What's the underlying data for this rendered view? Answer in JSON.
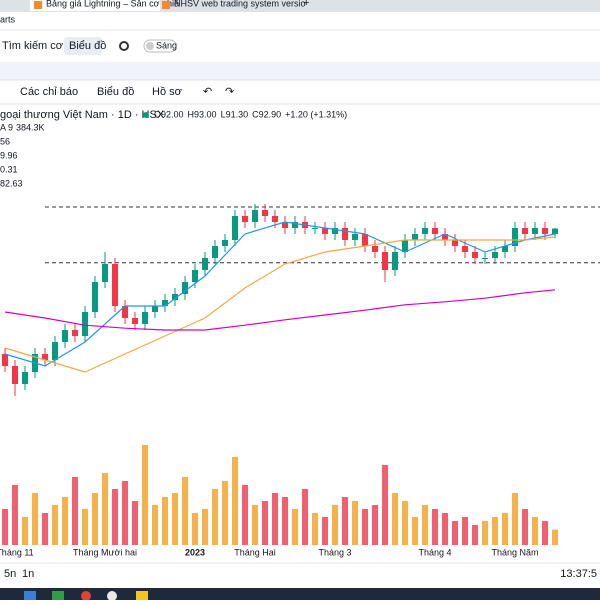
{
  "browser": {
    "tabs": [
      "Bảng giá Lightning – Sản cơ phiế",
      "NHSV web trading system versio"
    ],
    "app": "arts"
  },
  "toolbar": {
    "search": "Tìm kiếm cơ hội",
    "chart": "Biểu đồ",
    "theme": "Sáng"
  },
  "toolbar2": {
    "indicators": "Các chỉ báo",
    "chart": "Biểu đồ",
    "profile": "Hồ sơ"
  },
  "legend": {
    "symbol": "goại thương Việt Nam · 1D · HSX",
    "ohlc": [
      "O92.00",
      "H93.00",
      "L91.30",
      "C92.90",
      "+1.20 (+1.31%)"
    ],
    "rows": [
      [
        "A 9",
        "384.3K"
      ],
      [
        "56"
      ],
      [
        "9.96"
      ],
      [
        "0.31"
      ],
      [
        "82.63"
      ]
    ]
  },
  "bottom": {
    "ranges": [
      "5n",
      "1n"
    ],
    "time": "13:37:5"
  },
  "chart_data": {
    "type": "candlestick",
    "categories": [
      null,
      "Tháng 11",
      null,
      null,
      null,
      null,
      null,
      null,
      null,
      null,
      "Tháng Mười hai",
      null,
      null,
      null,
      null,
      null,
      null,
      null,
      null,
      "2023",
      null,
      null,
      null,
      null,
      null,
      "Tháng Hai",
      null,
      null,
      null,
      null,
      null,
      null,
      null,
      "Tháng 3",
      null,
      null,
      null,
      null,
      null,
      null,
      null,
      null,
      null,
      "Tháng 4",
      null,
      null,
      null,
      null,
      null,
      null,
      null,
      "Tháng Năm",
      null,
      null,
      null,
      null
    ],
    "open": [
      72,
      70,
      67,
      69,
      72,
      71,
      74,
      76,
      75,
      79,
      84,
      87,
      80,
      78,
      77,
      79,
      80,
      81,
      82,
      84,
      86,
      88,
      90,
      91,
      95,
      94,
      96,
      95,
      94,
      93,
      94,
      93,
      93,
      92,
      93,
      91,
      92,
      90,
      89,
      86,
      89,
      91,
      92,
      93,
      92,
      91,
      90,
      89,
      88,
      88,
      89,
      90,
      93,
      92,
      93,
      92
    ],
    "high": [
      73,
      71,
      70,
      73,
      73,
      75,
      77,
      77,
      80,
      85,
      89,
      88,
      81,
      79,
      80,
      81,
      82,
      83,
      85,
      87,
      89,
      91,
      92,
      96,
      96,
      97,
      97,
      96,
      95,
      95,
      95,
      94,
      94,
      94,
      94,
      93,
      93,
      91,
      90,
      90,
      92,
      93,
      94,
      94,
      93,
      92,
      91,
      90,
      89,
      90,
      91,
      94,
      94,
      94,
      94,
      93
    ],
    "low": [
      69,
      65,
      66,
      68,
      70,
      70,
      73,
      74,
      74,
      78,
      83,
      79,
      77,
      76,
      76,
      78,
      79,
      80,
      81,
      83,
      85,
      87,
      89,
      90,
      93,
      93,
      94,
      93,
      92,
      92,
      92,
      92,
      91,
      91,
      90,
      90,
      89,
      88,
      84,
      85,
      88,
      90,
      91,
      91,
      90,
      89,
      88,
      87,
      87,
      87,
      88,
      89,
      91,
      91,
      91,
      91.3
    ],
    "close": [
      70,
      67,
      69,
      72,
      71,
      74,
      76,
      75,
      79,
      84,
      87,
      80,
      78,
      77,
      79,
      80,
      81,
      82,
      84,
      86,
      88,
      90,
      91,
      95,
      94,
      96,
      95,
      94,
      93,
      94,
      93,
      93,
      92,
      93,
      91,
      92,
      90,
      89,
      86,
      89,
      91,
      92,
      93,
      92,
      91,
      90,
      89,
      88,
      88,
      89,
      90,
      93,
      92,
      93,
      92,
      92.9
    ],
    "volume": [
      900,
      1500,
      700,
      1300,
      800,
      1000,
      1200,
      1700,
      900,
      1300,
      1800,
      1400,
      1600,
      1100,
      2500,
      1000,
      1200,
      1300,
      1700,
      800,
      900,
      1400,
      1600,
      2200,
      1500,
      1000,
      1100,
      1300,
      1200,
      900,
      1400,
      800,
      700,
      1000,
      1200,
      1100,
      900,
      1000,
      2000,
      1300,
      1100,
      700,
      1000,
      900,
      800,
      600,
      700,
      500,
      600,
      700,
      800,
      1300,
      900,
      700,
      600,
      384.3
    ],
    "ylim": [
      61,
      113.5
    ],
    "volume_lim": [
      0,
      3000
    ],
    "up_color": "#089981",
    "down_color": "#f23645",
    "vol_up_color": "#f5b14c",
    "vol_down_color": "#ef6070",
    "hlines": [
      96.5,
      87.2
    ],
    "ma_x": [
      0,
      4,
      8,
      12,
      16,
      20,
      24,
      28,
      32,
      36,
      40,
      44,
      48,
      52,
      55
    ],
    "ma": [
      {
        "color": "#2196f3",
        "values": [
          72,
          70,
          74,
          80,
          80,
          85,
          92,
          94,
          93,
          92,
          89,
          92,
          89,
          91,
          92
        ]
      },
      {
        "color": "#f5a742",
        "values": [
          73,
          71,
          69,
          72,
          75,
          78,
          83,
          87,
          89,
          90,
          91,
          91,
          91,
          91,
          91.5
        ]
      },
      {
        "color": "#d500c8",
        "values": [
          79,
          78,
          76.8,
          76.3,
          76,
          76,
          76.8,
          77.7,
          78.5,
          79.3,
          80.2,
          80.7,
          81.3,
          82.2,
          82.7
        ]
      }
    ]
  }
}
